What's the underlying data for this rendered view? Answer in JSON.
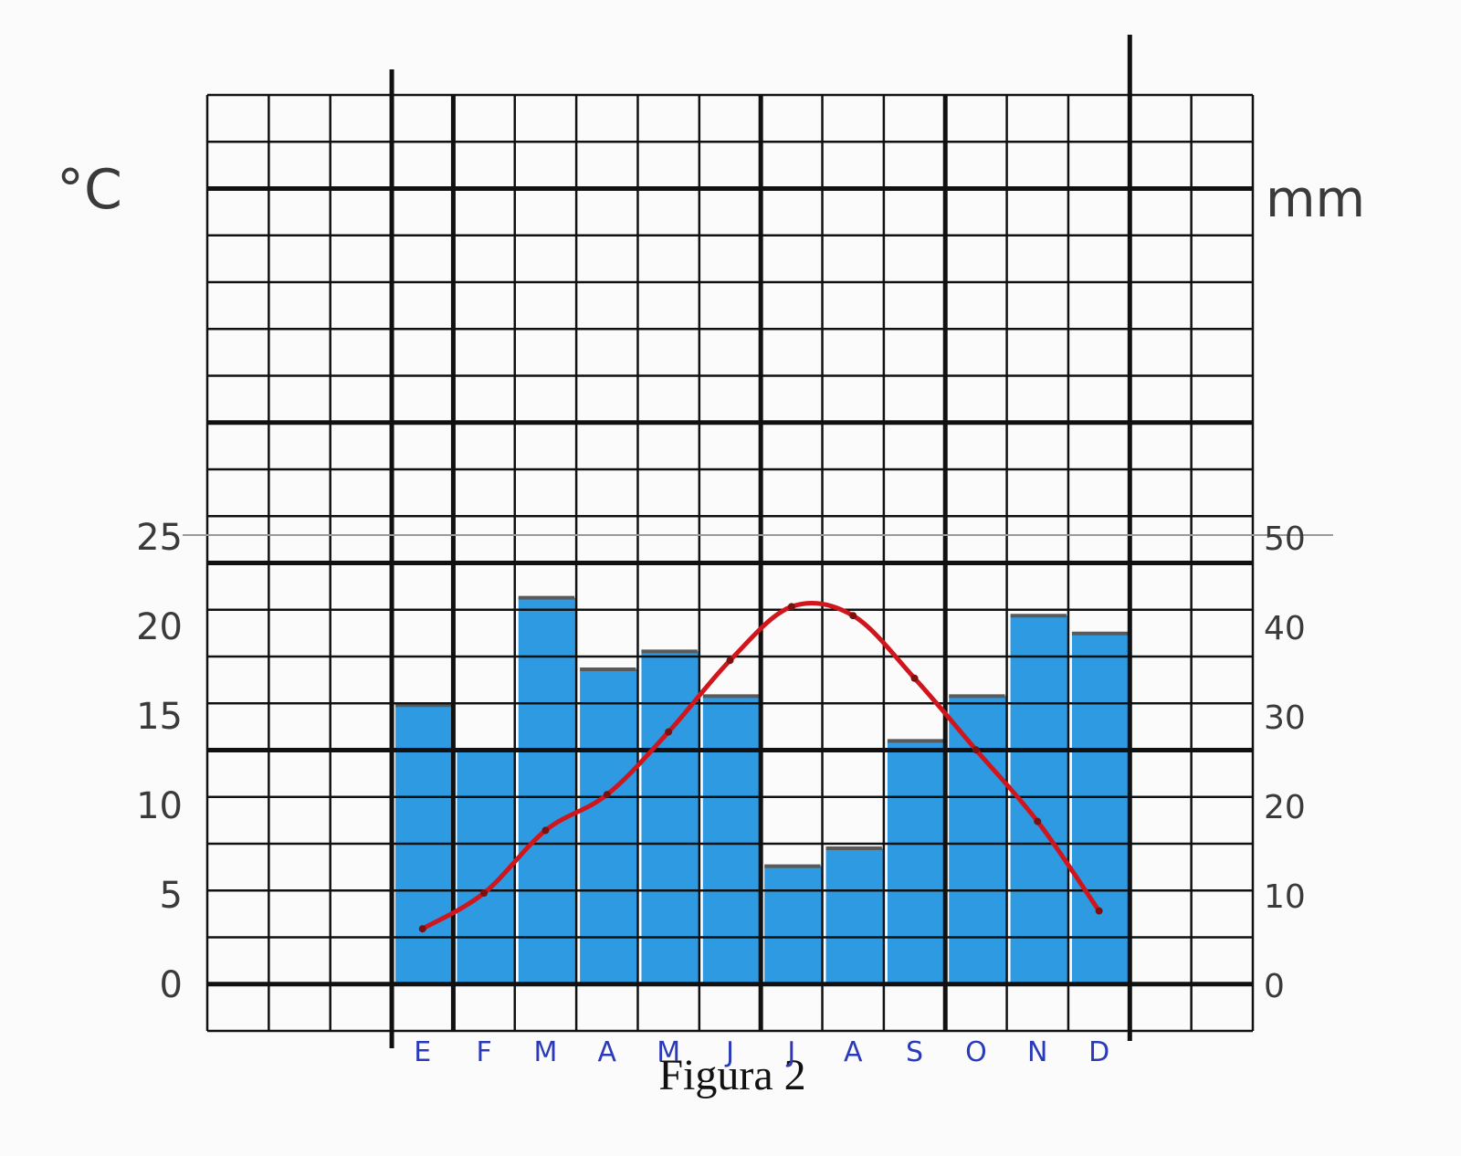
{
  "chart_data": {
    "type": "bar",
    "caption": "Figura 2",
    "left_axis_unit": "°C",
    "right_axis_unit": "mm",
    "left_ticks": [
      "0",
      "5",
      "10",
      "15",
      "20",
      "25"
    ],
    "right_ticks": [
      "0",
      "10",
      "20",
      "30",
      "40",
      "50"
    ],
    "categories": [
      "E",
      "F",
      "M",
      "A",
      "M",
      "J",
      "J",
      "A",
      "S",
      "O",
      "N",
      "D"
    ],
    "precipitation_mm": [
      31,
      26,
      43,
      35,
      37,
      32,
      13,
      15,
      27,
      32,
      41,
      39
    ],
    "temperature_c": [
      3,
      5,
      8.5,
      10.5,
      14,
      18,
      21,
      20.5,
      17,
      13,
      9,
      4
    ],
    "temperature_range": [
      0,
      25
    ],
    "precipitation_range": [
      0,
      50
    ],
    "colors": {
      "bars": "#2e9ae2",
      "bar_cap": "#5a5a5a",
      "temperature_line": "#d0161c",
      "grid": "#111111",
      "months": "#2a3ab8"
    }
  }
}
